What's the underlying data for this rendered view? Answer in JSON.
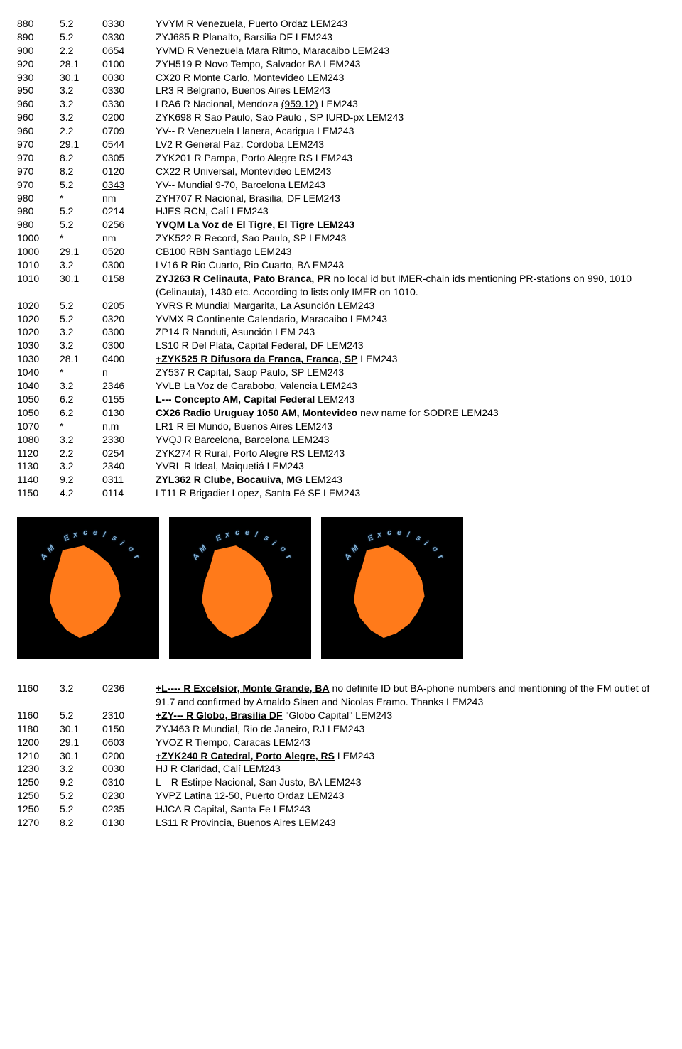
{
  "table1": [
    {
      "f": "880",
      "d": "5.2",
      "t": "0330",
      "s": "YVYM R Venezuela, Puerto Ordaz LEM243"
    },
    {
      "f": "890",
      "d": "5.2",
      "t": "0330",
      "s": "ZYJ685  R Planalto, Barsilia DF LEM243"
    },
    {
      "f": "900",
      "d": "2.2",
      "t": "0654",
      "s": "YVMD R Venezuela Mara Ritmo, Maracaibo LEM243"
    },
    {
      "f": "920",
      "d": "28.1",
      "t": "0100",
      "s": "ZYH519 R Novo Tempo, Salvador BA LEM243"
    },
    {
      "f": "930",
      "d": "30.1",
      "t": "0030",
      "s": "CX20 R Monte Carlo, Montevideo LEM243"
    },
    {
      "f": "950",
      "d": "3.2",
      "t": "0330",
      "s": "LR3 R Belgrano, Buenos Aires LEM243"
    },
    {
      "f": "960",
      "d": "3.2",
      "t": "0330",
      "s": [
        "LRA6 R Nacional, Mendoza ",
        {
          "u": "(959.12)"
        },
        " LEM243"
      ]
    },
    {
      "f": "960",
      "d": "3.2",
      "t": "0200",
      "s": "ZYK698 R Sao Paulo, Sao Paulo , SP IURD-px LEM243"
    },
    {
      "f": "960",
      "d": "2.2",
      "t": "0709",
      "s": "YV--  R Venezuela Llanera, Acarigua LEM243"
    },
    {
      "f": "970",
      "d": "29.1",
      "t": "0544",
      "s": "LV2 R General Paz, Cordoba LEM243"
    },
    {
      "f": "970",
      "d": "8.2",
      "t": "0305",
      "s": "ZYK201 R Pampa, Porto Alegre RS LEM243"
    },
    {
      "f": "970",
      "d": "8.2",
      "t": "0120",
      "s": "CX22 R Universal, Montevideo LEM243"
    },
    {
      "f": "970",
      "d": "5.2",
      "t": "0343",
      "tU": true,
      "s": "YV-- Mundial 9-70, Barcelona LEM243"
    },
    {
      "f": "980",
      "d": "*",
      "t": "nm",
      "s": "ZYH707 R Nacional, Brasilia, DF LEM243"
    },
    {
      "f": "980",
      "d": "5.2",
      "t": "0214",
      "s": "HJES RCN, Calí LEM243"
    },
    {
      "f": "980",
      "d": "5.2",
      "t": "0256",
      "s": [
        {
          "b": "YVQM La Voz de El Tigre, El Tigre LEM243"
        }
      ]
    },
    {
      "f": "1000",
      "d": "*",
      "t": "nm",
      "s": "ZYK522 R Record, Sao Paulo, SP LEM243"
    },
    {
      "f": "1000",
      "d": "29.1",
      "t": "0520",
      "s": "CB100 RBN Santiago LEM243"
    },
    {
      "f": "1010",
      "d": "3.2",
      "t": "0300",
      "s": "LV16 R Rio Cuarto, Rio Cuarto, BA EM243"
    },
    {
      "f": "1010",
      "d": "30.1",
      "t": "0158",
      "s": [
        {
          "b": "ZYJ263 R Celinauta, Pato Branca, PR"
        },
        " no local id but IMER-chain ids mentioning PR-stations on 990, 1010 (Celinauta), 1430 etc. According to lists only IMER  on 1010."
      ]
    },
    {
      "f": "1020",
      "d": "5.2",
      "t": "0205",
      "s": "YVRS R Mundial Margarita, La Asunción LEM243"
    },
    {
      "f": "1020",
      "d": "5.2",
      "t": "0320",
      "s": "YVMX R Continente Calendario, Maracaibo LEM243"
    },
    {
      "f": "1020",
      "d": "3.2",
      "t": "0300",
      "s": "ZP14 R Nanduti, Asunción LEM 243"
    },
    {
      "f": "1030",
      "d": "3.2",
      "t": "0300",
      "s": "LS10 R Del Plata, Capital Federal, DF LEM243"
    },
    {
      "f": "1030",
      "d": "28.1",
      "t": "0400",
      "s": [
        {
          "bu": "+ZYK525 R Difusora da Franca, Franca, SP"
        },
        " LEM243"
      ]
    },
    {
      "f": "1040",
      "d": "*",
      "t": "n",
      "s": "ZY537 R Capital, Saop Paulo, SP LEM243"
    },
    {
      "f": "1040",
      "d": "3.2",
      "t": "2346",
      "s": "YVLB La Voz de Carabobo, Valencia LEM243"
    },
    {
      "f": "1050",
      "d": "6.2",
      "t": "0155",
      "s": [
        {
          "b": "L--- Concepto AM, Capital Federal"
        },
        " LEM243"
      ]
    },
    {
      "f": "1050",
      "d": "6.2",
      "t": "0130",
      "s": [
        {
          "b": "CX26 Radio Uruguay 1050 AM, Montevideo"
        },
        " new name for SODRE LEM243"
      ]
    },
    {
      "f": "1070",
      "d": "*",
      "t": "n,m",
      "s": "LR1 R El Mundo, Buenos Aires LEM243"
    },
    {
      "f": "1080",
      "d": "3.2",
      "t": "2330",
      "s": "YVQJ R Barcelona, Barcelona LEM243"
    },
    {
      "f": "1120",
      "d": "2.2",
      "t": "0254",
      "s": "ZYK274 R Rural, Porto Alegre RS LEM243"
    },
    {
      "f": "1130",
      "d": "3.2",
      "t": "2340",
      "s": "YVRL R Ideal, Maiquetiá LEM243"
    },
    {
      "f": "1140",
      "d": "9.2",
      "t": "0311",
      "s": [
        {
          "b": "ZYL362 R Clube, Bocauiva, MG"
        },
        " LEM243"
      ]
    },
    {
      "f": "1150",
      "d": "4.2",
      "t": "0114",
      "s": "LT11 R Brigadier Lopez, Santa Fé SF LEM243"
    }
  ],
  "logoText": "AM Excelsior",
  "table2": [
    {
      "f": "1160",
      "d": "3.2",
      "t": "0236",
      "s": [
        {
          "bu": "+L---- R Excelsior, Monte Grande, BA"
        },
        " no definite ID but BA-phone numbers and mentioning of the FM outlet of 91.7 and confirmed by Arnaldo Slaen and Nicolas Eramo. Thanks LEM243"
      ]
    },
    {
      "f": "1160",
      "d": "5.2",
      "t": "2310",
      "s": [
        {
          "bu": "+ZY---  R Globo, Brasilia DF"
        },
        " \"Globo Capital\" LEM243"
      ]
    },
    {
      "f": "1180",
      "d": "30.1",
      "t": "0150",
      "s": "ZYJ463 R Mundial, Rio de Janeiro, RJ LEM243"
    },
    {
      "f": "1200",
      "d": "29.1",
      "t": "0603",
      "s": "YVOZ  R Tiempo, Caracas LEM243"
    },
    {
      "f": "1210",
      "d": "30.1",
      "t": "0200",
      "s": [
        {
          "bu": "+ZYK240 R Catedral, Porto Alegre, RS"
        },
        " LEM243"
      ]
    },
    {
      "f": "1230",
      "d": "3.2",
      "t": "0030",
      "s": "HJ R Claridad, Calí LEM243"
    },
    {
      "f": "1250",
      "d": "9.2",
      "t": "0310",
      "s": "L—R Estirpe Nacional, San Justo, BA LEM243"
    },
    {
      "f": "1250",
      "d": "5.2",
      "t": "0230",
      "s": "YVPZ Latina 12-50, Puerto Ordaz LEM243"
    },
    {
      "f": "1250",
      "d": "5.2",
      "t": "0235",
      "s": "HJCA R Capital, Santa Fe LEM243"
    },
    {
      "f": "1270",
      "d": "8.2",
      "t": "0130",
      "s": "LS11 R Provincia, Buenos Aires LEM243"
    }
  ]
}
